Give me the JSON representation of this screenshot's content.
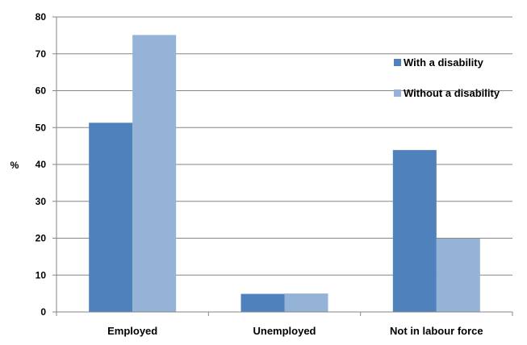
{
  "chart_data": {
    "type": "bar",
    "categories": [
      "Employed",
      "Unemployed",
      "Not in labour force"
    ],
    "series": [
      {
        "name": "With a disability",
        "values": [
          51.3,
          4.9,
          43.9
        ],
        "color": "#4f81bd"
      },
      {
        "name": "Without a disability",
        "values": [
          75.1,
          5.0,
          19.9
        ],
        "color": "#95b3d7"
      }
    ],
    "ylabel": "%",
    "ylim": [
      0,
      80
    ],
    "yticks": [
      0,
      10,
      20,
      30,
      40,
      50,
      60,
      70,
      80
    ],
    "grid": true,
    "legend_position": "right"
  }
}
